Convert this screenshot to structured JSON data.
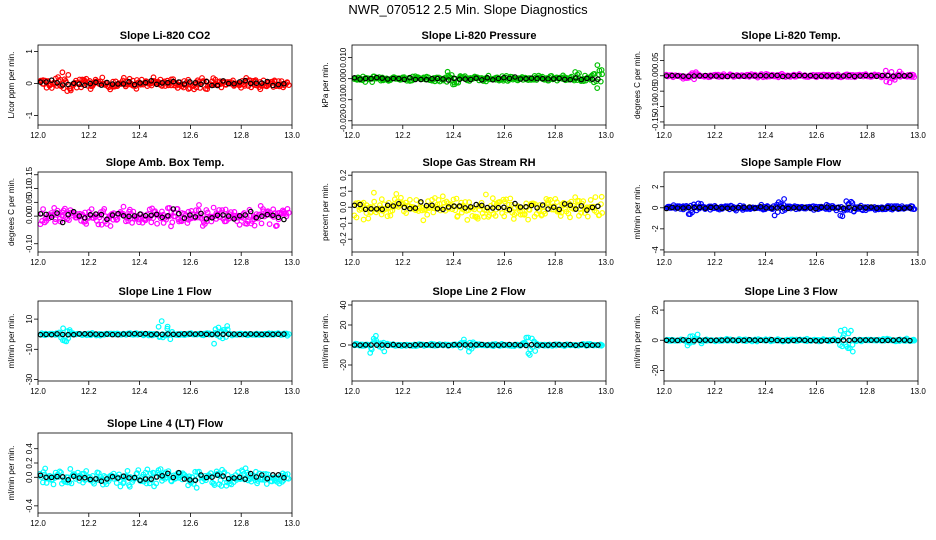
{
  "title": "NWR_070512  2.5 Min. Slope Diagnostics",
  "chart_data": [
    {
      "id": "co2",
      "type": "scatter",
      "title": "Slope Li-820 CO2",
      "ylabel": "L/cor ppm per min.",
      "color": "#ff0000",
      "xlim": [
        12.0,
        13.0
      ],
      "ylim": [
        -1.3,
        1.2
      ],
      "yticks": [
        -1,
        0,
        1
      ],
      "ytick_labels": [
        "-1",
        "0",
        "1"
      ],
      "noise": {
        "base": 0.32,
        "spikes": [
          [
            12.08,
            0.6
          ],
          [
            12.1,
            1.0
          ]
        ]
      }
    },
    {
      "id": "pressure",
      "type": "scatter",
      "title": "Slope Li-820 Pressure",
      "ylabel": "kPa per min.",
      "color": "#00c000",
      "xlim": [
        12.0,
        13.0
      ],
      "ylim": [
        -0.022,
        0.016
      ],
      "yticks": [
        -0.02,
        -0.01,
        0.0,
        0.01
      ],
      "ytick_labels": [
        "-0.020",
        "-0.010",
        "0.000",
        "0.010"
      ],
      "noise": {
        "base": 0.0025,
        "spikes": [
          [
            12.4,
            0.012
          ],
          [
            12.9,
            0.016
          ],
          [
            12.98,
            0.02
          ]
        ]
      }
    },
    {
      "id": "temp",
      "type": "scatter",
      "title": "Slope Li-820 Temp.",
      "ylabel": "degrees C per min.",
      "color": "#ff00ff",
      "xlim": [
        12.0,
        13.0
      ],
      "ylim": [
        -0.16,
        0.1
      ],
      "yticks": [
        -0.15,
        -0.1,
        -0.05,
        0.0,
        0.05
      ],
      "ytick_labels": [
        "-0.15",
        "-0.10",
        "-0.05",
        "0.00",
        "0.05"
      ],
      "noise": {
        "base": 0.01,
        "spikes": [
          [
            12.1,
            0.04
          ],
          [
            12.9,
            0.06
          ]
        ]
      }
    },
    {
      "id": "ambbox",
      "type": "scatter",
      "title": "Slope Amb. Box Temp.",
      "ylabel": "degrees C per min.",
      "color": "#ff00ff",
      "xlim": [
        12.0,
        13.0
      ],
      "ylim": [
        -0.13,
        0.16
      ],
      "yticks": [
        -0.1,
        0.0,
        0.05,
        0.1,
        0.15
      ],
      "ytick_labels": [
        "-0.10",
        "0.00",
        "0.05",
        "0.10",
        "0.15"
      ],
      "noise": {
        "base": 0.07,
        "spikes": [
          [
            12.7,
            0.08
          ]
        ]
      }
    },
    {
      "id": "rh",
      "type": "scatter",
      "title": "Slope Gas Stream RH",
      "ylabel": "percent per min.",
      "color": "#ffff00",
      "xlim": [
        12.0,
        13.0
      ],
      "ylim": [
        -0.28,
        0.22
      ],
      "yticks": [
        -0.2,
        -0.1,
        0.0,
        0.1,
        0.2
      ],
      "ytick_labels": [
        "-0.2",
        "-0.1",
        "0.0",
        "0.1",
        "0.2"
      ],
      "noise": {
        "base": 0.13,
        "spikes": []
      }
    },
    {
      "id": "sampleflow",
      "type": "scatter",
      "title": "Slope Sample Flow",
      "ylabel": "ml/min per min.",
      "color": "#0000ff",
      "xlim": [
        12.0,
        13.0
      ],
      "ylim": [
        -4.2,
        3.4
      ],
      "yticks": [
        -4,
        -2,
        0,
        2
      ],
      "ytick_labels": [
        "-4",
        "-2",
        "0",
        "2"
      ],
      "noise": {
        "base": 0.4,
        "spikes": [
          [
            12.12,
            3.0
          ],
          [
            12.45,
            2.5
          ],
          [
            12.72,
            2.8
          ]
        ]
      }
    },
    {
      "id": "line1",
      "type": "scatter",
      "title": "Slope Line 1 Flow",
      "ylabel": "ml/min per min.",
      "color": "#00ffff",
      "xlim": [
        12.0,
        13.0
      ],
      "ylim": [
        -31,
        22
      ],
      "yticks": [
        -30,
        -10,
        10
      ],
      "ytick_labels": [
        "-30",
        "-10",
        "10"
      ],
      "noise": {
        "base": 1.5,
        "spikes": [
          [
            12.1,
            20
          ],
          [
            12.5,
            25
          ],
          [
            12.72,
            22
          ]
        ]
      }
    },
    {
      "id": "line2",
      "type": "scatter",
      "title": "Slope Line 2 Flow",
      "ylabel": "ml/min per min.",
      "color": "#00ffff",
      "xlim": [
        12.0,
        13.0
      ],
      "ylim": [
        -36,
        44
      ],
      "yticks": [
        -20,
        0,
        20,
        40
      ],
      "ytick_labels": [
        "-20",
        "0",
        "20",
        "40"
      ],
      "noise": {
        "base": 2.0,
        "spikes": [
          [
            12.1,
            30
          ],
          [
            12.45,
            25
          ],
          [
            12.7,
            40
          ]
        ]
      }
    },
    {
      "id": "line3",
      "type": "scatter",
      "title": "Slope Line 3 Flow",
      "ylabel": "ml/min per min.",
      "color": "#00ffff",
      "xlim": [
        12.0,
        13.0
      ],
      "ylim": [
        -27,
        26
      ],
      "yticks": [
        -20,
        0,
        20
      ],
      "ytick_labels": [
        "-20",
        "0",
        "20"
      ],
      "noise": {
        "base": 1.5,
        "spikes": [
          [
            12.12,
            20
          ],
          [
            12.72,
            28
          ]
        ]
      }
    },
    {
      "id": "line4",
      "type": "scatter",
      "title": "Slope Line 4 (LT) Flow",
      "ylabel": "ml/min per min.",
      "color": "#00ffff",
      "xlim": [
        12.0,
        13.0
      ],
      "ylim": [
        -0.5,
        0.62
      ],
      "yticks": [
        -0.4,
        0.0,
        0.2,
        0.4
      ],
      "ytick_labels": [
        "-0.4",
        "0.0",
        "0.2",
        "0.4"
      ],
      "noise": {
        "base": 0.22,
        "spikes": [
          [
            12.7,
            0.3
          ]
        ]
      }
    }
  ],
  "xticks": [
    12.0,
    12.2,
    12.4,
    12.6,
    12.8,
    13.0
  ],
  "xtick_labels": [
    "12.0",
    "12.2",
    "12.4",
    "12.6",
    "12.8",
    "13.0"
  ],
  "reference_color": "#000000"
}
